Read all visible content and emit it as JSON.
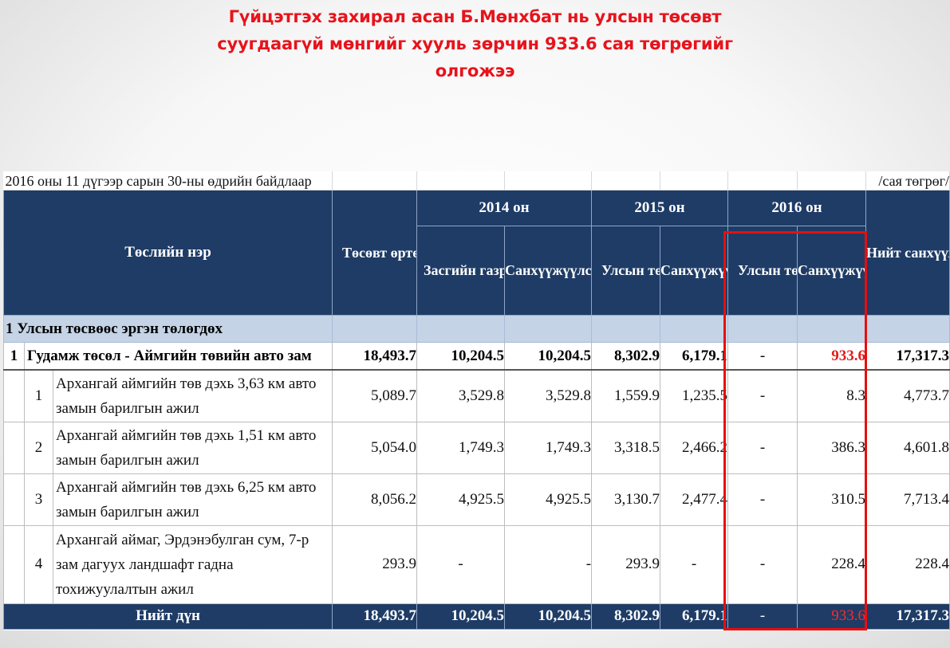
{
  "headline": {
    "line1": "Гүйцэтгэх захирал асан Б.Мөнхбат нь улсын төсөвт",
    "line2": "суугдаагүй мөнгийг хууль зөрчин 933.6 сая төгрөгийг",
    "line3": "олгожээ"
  },
  "table": {
    "caption": "2016 оны 11 дүгээр сарын 30-ны өдрийн байдлаар",
    "unit": "/сая төгрөг/",
    "headers": {
      "project_name": "Төслийн нэр",
      "budget_cost": "Төсөвт өртөг",
      "year_2014": "2014 он",
      "year_2015": "2015 он",
      "year_2016": "2016 он",
      "total_funded": "Нийт санхүүжүүлсэн дүн",
      "gov_resolution": "Засгийн газрын тогтоолын",
      "funded_amount": "Санхүүжүүлсэн дүн",
      "state_budget_in": "Улсын төсөвт суусан",
      "funded": "Санхүүжүүлсэн",
      "state_budget_in_2016": "Улсын төсөвт суусан",
      "funded_2016": "Санхүүжүүлсэн"
    },
    "section": "1 Улсын төсвөөс эргэн төлөгдөх",
    "main_row": {
      "num": "1",
      "name": "Гудамж төсөл - Аймгийн төвийн авто зам",
      "budget": "18,493.7",
      "gov_2014": "10,204.5",
      "fund_2014": "10,204.5",
      "budget_2015": "8,302.9",
      "fund_2015": "6,179.1",
      "budget_2016": "-",
      "fund_2016": "933.6",
      "total": "17,317.3"
    },
    "rows": [
      {
        "idx": "1",
        "name": "Архангай аймгийн төв дэхь 3,63 км авто замын барилгын ажил",
        "budget": "5,089.7",
        "gov_2014": "3,529.8",
        "fund_2014": "3,529.8",
        "budget_2015": "1,559.9",
        "fund_2015": "1,235.5",
        "budget_2016": "-",
        "fund_2016": "8.3",
        "total": "4,773.7"
      },
      {
        "idx": "2",
        "name": "Архангай аймгийн төв дэхь 1,51 км авто замын барилгын ажил",
        "budget": "5,054.0",
        "gov_2014": "1,749.3",
        "fund_2014": "1,749.3",
        "budget_2015": "3,318.5",
        "fund_2015": "2,466.2",
        "budget_2016": "-",
        "fund_2016": "386.3",
        "total": "4,601.8"
      },
      {
        "idx": "3",
        "name": "Архангай аймгийн төв дэхь 6,25 км авто замын барилгын ажил",
        "budget": "8,056.2",
        "gov_2014": "4,925.5",
        "fund_2014": "4,925.5",
        "budget_2015": "3,130.7",
        "fund_2015": "2,477.4",
        "budget_2016": "-",
        "fund_2016": "310.5",
        "total": "7,713.4"
      },
      {
        "idx": "4",
        "name": "Архангай аймаг, Эрдэнэбулган сум, 7-р зам дагуух ландшафт гадна тохижуулалтын ажил",
        "budget": "293.9",
        "gov_2014": "-",
        "fund_2014": "-",
        "budget_2015": "293.9",
        "fund_2015": "-",
        "budget_2016": "-",
        "fund_2016": "228.4",
        "total": "228.4"
      }
    ],
    "total_row": {
      "label": "Нийт дүн",
      "budget": "18,493.7",
      "gov_2014": "10,204.5",
      "fund_2014": "10,204.5",
      "budget_2015": "8,302.9",
      "fund_2015": "6,179.1",
      "budget_2016": "-",
      "fund_2016": "933.6",
      "total": "17,317.3"
    }
  },
  "colors": {
    "header_bg": "#1e3c66",
    "section_bg": "#c4d3e6",
    "highlight": "#e60f0f",
    "headline": "#e8131b"
  }
}
